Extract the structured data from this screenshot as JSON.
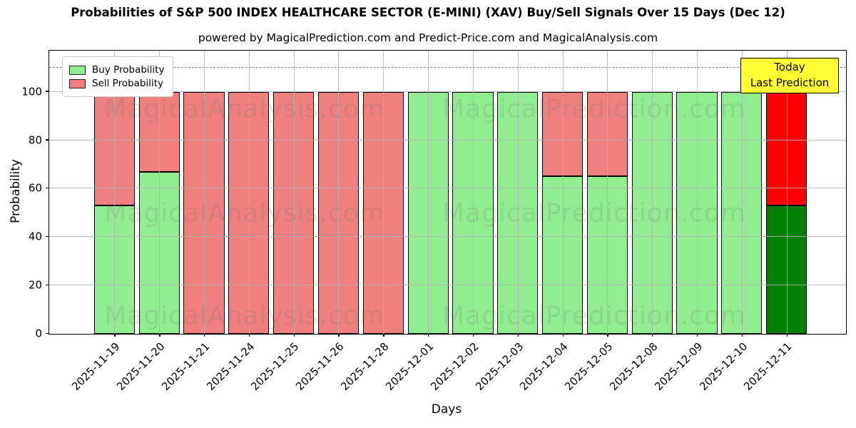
{
  "title": "Probabilities of S&P 500 INDEX HEALTHCARE SECTOR (E-MINI) (XAV) Buy/Sell Signals Over 15 Days (Dec 12)",
  "subtitle": "powered by MagicalPrediction.com and Predict-Price.com and MagicalAnalysis.com",
  "y_axis": {
    "label": "Probability",
    "ticks": [
      0,
      20,
      40,
      60,
      80,
      100
    ],
    "max": 117
  },
  "x_axis": {
    "label": "Days"
  },
  "legend": {
    "items": [
      {
        "label": "Buy Probability",
        "color": "#90ee90"
      },
      {
        "label": "Sell Probability",
        "color": "#f08080"
      }
    ]
  },
  "annotation": {
    "line1": "Today",
    "line2": "Last Prediction",
    "bg_color": "#ffff33"
  },
  "reference_line": {
    "y": 110,
    "style": "dashed",
    "color": "#7f7f7f"
  },
  "watermarks": {
    "left_text": "MagicalAnalysis.com",
    "right_text": "MagicalPrediction.com"
  },
  "chart_data": {
    "type": "bar",
    "stacked": true,
    "title": "Probabilities of S&P 500 INDEX HEALTHCARE SECTOR (E-MINI) (XAV) Buy/Sell Signals Over 15 Days (Dec 12)",
    "xlabel": "Days",
    "ylabel": "Probability",
    "ylim": [
      0,
      117
    ],
    "grid": true,
    "legend_position": "upper left",
    "categories": [
      "2025-11-19",
      "2025-11-20",
      "2025-11-21",
      "2025-11-24",
      "2025-11-25",
      "2025-11-26",
      "2025-11-28",
      "2025-12-01",
      "2025-12-02",
      "2025-12-03",
      "2025-12-04",
      "2025-12-05",
      "2025-12-08",
      "2025-12-09",
      "2025-12-10",
      "2025-12-11"
    ],
    "series": [
      {
        "name": "Buy Probability",
        "color": "#90ee90",
        "values": [
          53,
          67,
          0,
          0,
          0,
          0,
          0,
          100,
          100,
          100,
          65,
          65,
          100,
          100,
          100,
          53
        ]
      },
      {
        "name": "Sell Probability",
        "color": "#f08080",
        "values": [
          47,
          33,
          100,
          100,
          100,
          100,
          100,
          0,
          0,
          0,
          35,
          35,
          0,
          0,
          0,
          47
        ]
      }
    ],
    "today_bar": {
      "index": 15,
      "buy_color": "#008000",
      "sell_color": "#ff0000"
    }
  }
}
